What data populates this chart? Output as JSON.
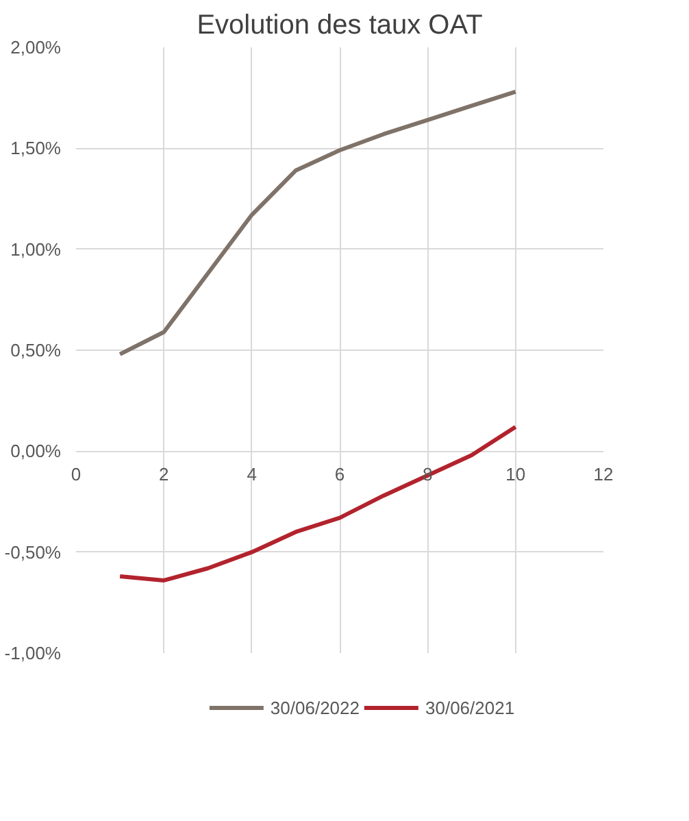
{
  "chart_data": {
    "type": "line",
    "title": "Evolution des taux OAT",
    "x": [
      1,
      2,
      3,
      4,
      5,
      6,
      7,
      8,
      9,
      10
    ],
    "series": [
      {
        "name": "30/06/2022",
        "color": "#7f7268",
        "values": [
          0.48,
          0.59,
          0.88,
          1.17,
          1.39,
          1.49,
          1.57,
          1.64,
          1.71,
          1.78
        ]
      },
      {
        "name": "30/06/2021",
        "color": "#b2232d",
        "values": [
          -0.62,
          -0.64,
          -0.58,
          -0.5,
          -0.4,
          -0.33,
          -0.22,
          -0.12,
          -0.02,
          0.12
        ]
      }
    ],
    "xlim": [
      0,
      12
    ],
    "xticks": [
      0,
      2,
      4,
      6,
      8,
      10,
      12
    ],
    "ylim": [
      -1,
      2
    ],
    "yticks": [
      {
        "value": -1,
        "label": "-1,00%"
      },
      {
        "value": -0.5,
        "label": "-0,50%"
      },
      {
        "value": 0,
        "label": "0,00%"
      },
      {
        "value": 0.5,
        "label": "0,50%"
      },
      {
        "value": 1,
        "label": "1,00%"
      },
      {
        "value": 1.5,
        "label": "1,50%"
      },
      {
        "value": 2,
        "label": "2,00%"
      }
    ],
    "grid": true,
    "legend": "bottom",
    "marker": "none",
    "line_style": "solid"
  }
}
